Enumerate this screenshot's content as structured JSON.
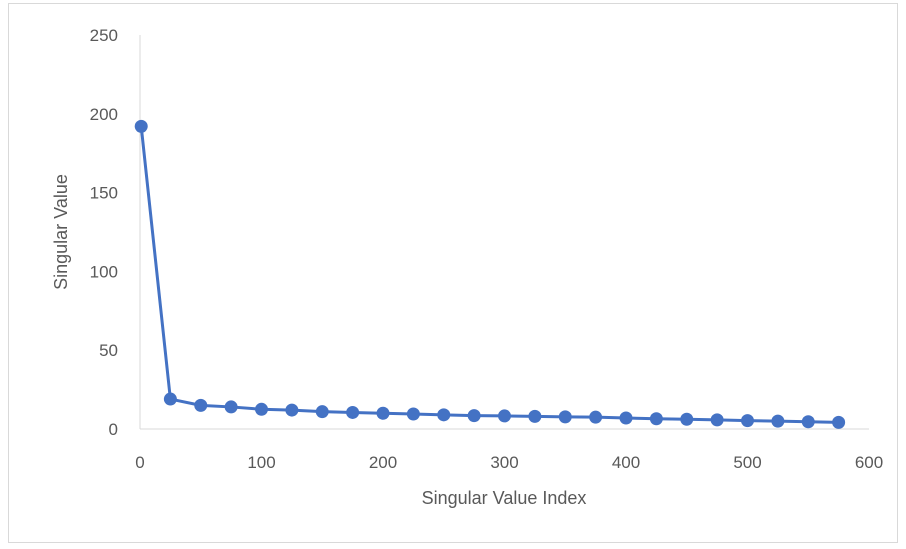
{
  "chart_data": {
    "type": "line",
    "title": "",
    "xlabel": "Singular Value Index",
    "ylabel": "Singular Value",
    "xlim": [
      0,
      600
    ],
    "ylim": [
      0,
      250
    ],
    "xticks": [
      "0",
      "100",
      "200",
      "300",
      "400",
      "500",
      "600"
    ],
    "yticks": [
      "0",
      "50",
      "100",
      "150",
      "200",
      "250"
    ],
    "grid": false,
    "legend": "none",
    "color": "#4472c4",
    "series": [
      {
        "x": [
          1,
          25,
          50,
          75,
          100,
          125,
          150,
          175,
          200,
          225,
          250,
          275,
          300,
          325,
          350,
          375,
          400,
          425,
          450,
          475,
          500,
          525,
          550,
          575
        ],
        "y": [
          192,
          19,
          15,
          14,
          12.5,
          12,
          11,
          10.5,
          10,
          9.5,
          9,
          8.5,
          8.3,
          8,
          7.7,
          7.5,
          7,
          6.5,
          6.2,
          5.8,
          5.3,
          5,
          4.6,
          4.2
        ]
      }
    ]
  }
}
